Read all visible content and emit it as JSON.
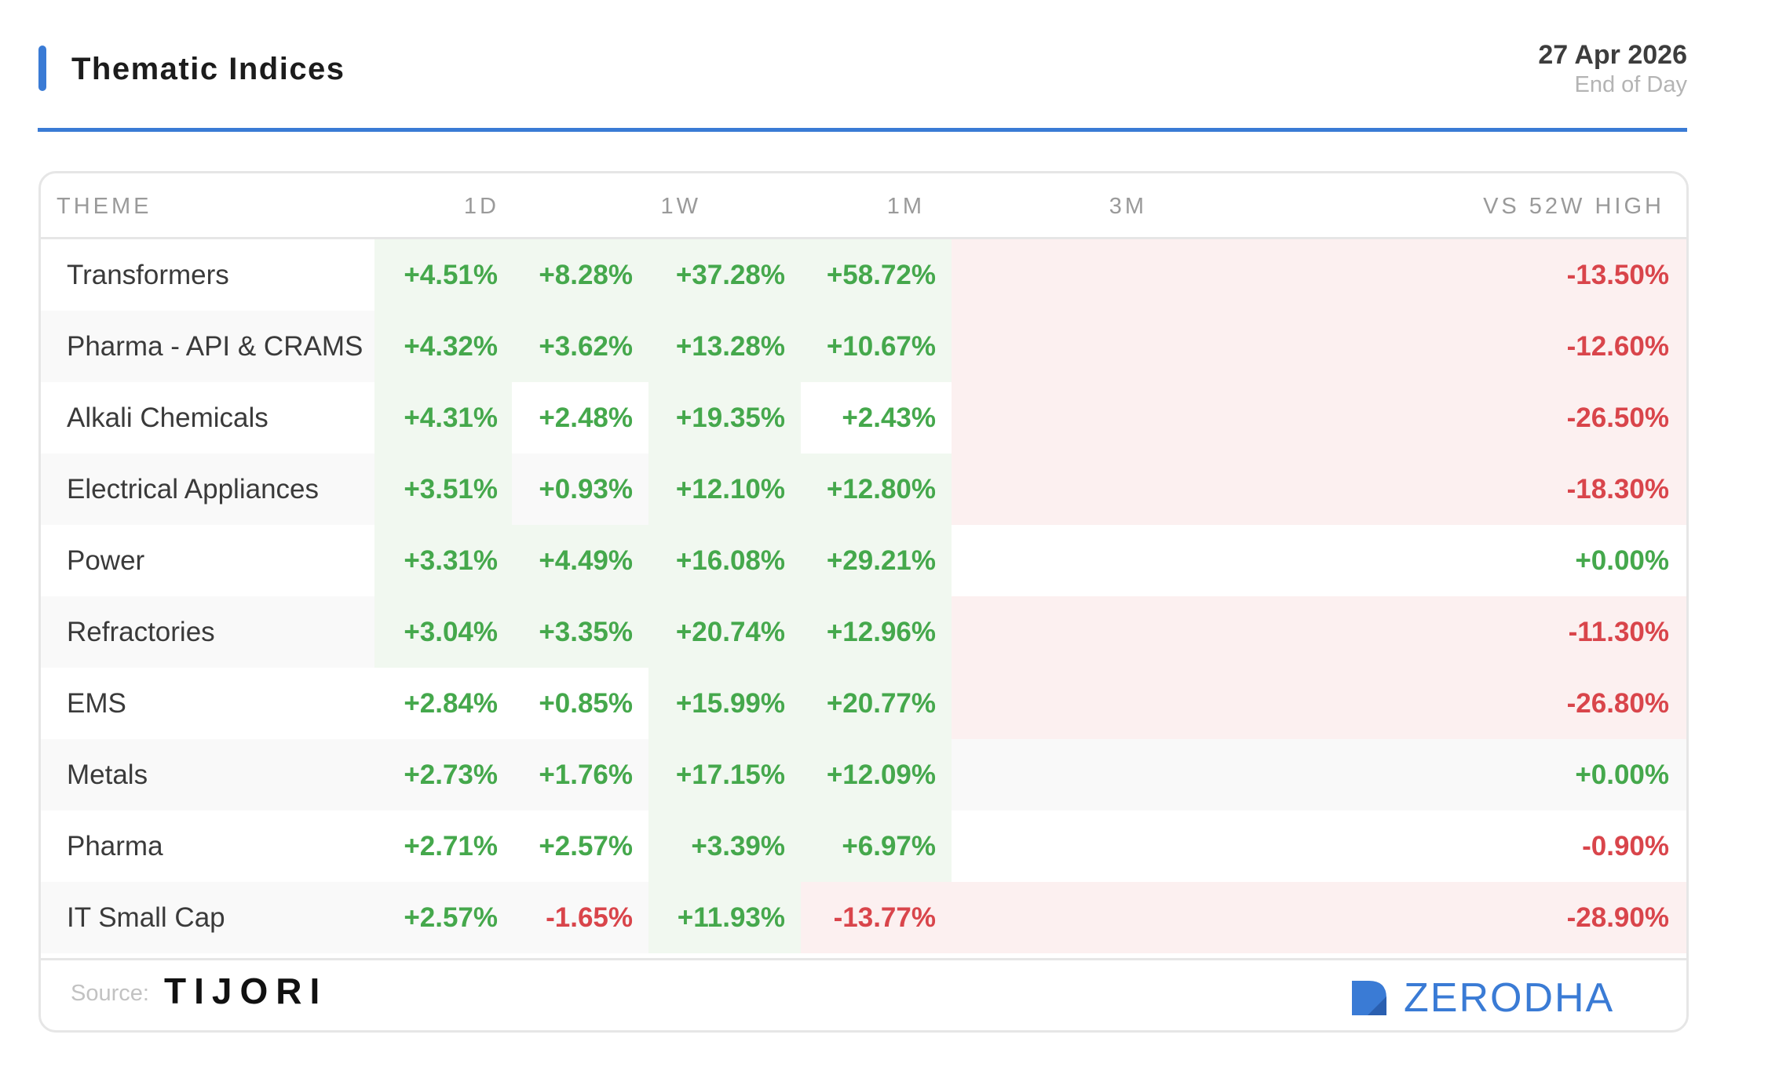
{
  "header": {
    "title": "Thematic Indices",
    "date": "27 Apr 2026",
    "subtitle": "End of Day",
    "accent_color": "#3a7bd5"
  },
  "table": {
    "columns": [
      "THEME",
      "1D",
      "1W",
      "1M",
      "3M",
      "VS 52W HIGH"
    ],
    "rows": [
      {
        "theme": "Transformers",
        "d1": "+4.51%",
        "w1": "+8.28%",
        "m1": "+37.28%",
        "m3": "+58.72%",
        "vs52w": "-13.50%"
      },
      {
        "theme": "Pharma - API & CRAMS",
        "d1": "+4.32%",
        "w1": "+3.62%",
        "m1": "+13.28%",
        "m3": "+10.67%",
        "vs52w": "-12.60%"
      },
      {
        "theme": "Alkali Chemicals",
        "d1": "+4.31%",
        "w1": "+2.48%",
        "m1": "+19.35%",
        "m3": "+2.43%",
        "vs52w": "-26.50%"
      },
      {
        "theme": "Electrical Appliances",
        "d1": "+3.51%",
        "w1": "+0.93%",
        "m1": "+12.10%",
        "m3": "+12.80%",
        "vs52w": "-18.30%"
      },
      {
        "theme": "Power",
        "d1": "+3.31%",
        "w1": "+4.49%",
        "m1": "+16.08%",
        "m3": "+29.21%",
        "vs52w": "+0.00%"
      },
      {
        "theme": "Refractories",
        "d1": "+3.04%",
        "w1": "+3.35%",
        "m1": "+20.74%",
        "m3": "+12.96%",
        "vs52w": "-11.30%"
      },
      {
        "theme": "EMS",
        "d1": "+2.84%",
        "w1": "+0.85%",
        "m1": "+15.99%",
        "m3": "+20.77%",
        "vs52w": "-26.80%"
      },
      {
        "theme": "Metals",
        "d1": "+2.73%",
        "w1": "+1.76%",
        "m1": "+17.15%",
        "m3": "+12.09%",
        "vs52w": "+0.00%"
      },
      {
        "theme": "Pharma",
        "d1": "+2.71%",
        "w1": "+2.57%",
        "m1": "+3.39%",
        "m3": "+6.97%",
        "vs52w": "-0.90%"
      },
      {
        "theme": "IT Small Cap",
        "d1": "+2.57%",
        "w1": "-1.65%",
        "m1": "+11.93%",
        "m3": "-13.77%",
        "vs52w": "-28.90%"
      }
    ],
    "highlight": [
      [
        "green",
        "green",
        "green",
        "green",
        "red"
      ],
      [
        "green",
        "green",
        "green",
        "green",
        "red"
      ],
      [
        "green",
        "none",
        "green",
        "none",
        "red"
      ],
      [
        "green",
        "none",
        "green",
        "green",
        "red"
      ],
      [
        "green",
        "green",
        "green",
        "green",
        "none"
      ],
      [
        "green",
        "green",
        "green",
        "green",
        "red"
      ],
      [
        "none",
        "none",
        "green",
        "green",
        "red"
      ],
      [
        "none",
        "none",
        "green",
        "green",
        "none"
      ],
      [
        "none",
        "none",
        "green",
        "green",
        "none"
      ],
      [
        "none",
        "none",
        "green",
        "red",
        "red"
      ]
    ],
    "colors": {
      "positive_text": "#45a84c",
      "negative_text": "#d9454b",
      "positive_bg": "#f1f8f0",
      "negative_bg": "#fcf0f0",
      "stripe_bg": "#f9f9f9"
    }
  },
  "footer": {
    "source_label": "Source:",
    "source_brand": "TIJORI",
    "brand": "ZERODHA",
    "brand_icon": "zerodha-logo-icon"
  }
}
